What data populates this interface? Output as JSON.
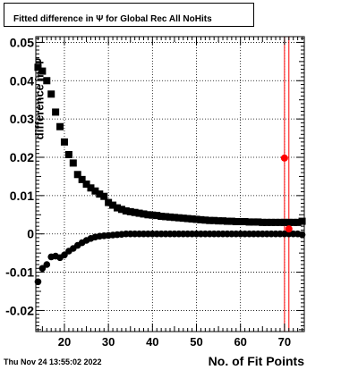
{
  "chart_data": {
    "type": "scatter",
    "title": "Fitted difference in Ψ  for Global Rec All NoHits",
    "ylabel": "difference in Ψ",
    "xlabel": "No. of Fit Points",
    "footer": "Thu Nov 24 13:55:02 2022",
    "xlim": [
      13.5,
      74.5
    ],
    "ylim": [
      -0.0255,
      0.0515
    ],
    "xticks": [
      20,
      30,
      40,
      50,
      60,
      70
    ],
    "xtick_labels": [
      "20",
      "30",
      "40",
      "50",
      "60",
      "70"
    ],
    "yticks": [
      -0.02,
      -0.01,
      0,
      0.01,
      0.02,
      0.03,
      0.04,
      0.05
    ],
    "ytick_labels": [
      "-0.02",
      "-0.01",
      "0",
      "0.01",
      "0.02",
      "0.03",
      "0.04",
      "0.05"
    ],
    "grid": true,
    "colors": {
      "series": "#000000",
      "marker_red": "#ff0000"
    },
    "series": [
      {
        "marker": "square",
        "x": [
          14,
          15,
          16,
          17,
          18,
          19,
          20,
          21,
          22,
          23,
          24,
          25,
          26,
          27,
          28,
          29,
          30,
          31,
          32,
          33,
          34,
          35,
          36,
          37,
          38,
          39,
          40,
          41,
          42,
          43,
          44,
          45,
          46,
          47,
          48,
          49,
          50,
          51,
          52,
          53,
          54,
          55,
          56,
          57,
          58,
          59,
          60,
          61,
          62,
          63,
          64,
          65,
          66,
          67,
          68,
          69,
          70,
          71,
          72,
          73,
          74
        ],
        "values": [
          0.0435,
          0.0425,
          0.04,
          0.0365,
          0.0318,
          0.028,
          0.024,
          0.0207,
          0.0185,
          0.0155,
          0.0142,
          0.013,
          0.012,
          0.0112,
          0.0104,
          0.0098,
          0.0082,
          0.0075,
          0.0068,
          0.0064,
          0.006,
          0.0058,
          0.0056,
          0.0054,
          0.0052,
          0.005,
          0.0049,
          0.0048,
          0.0046,
          0.0045,
          0.0044,
          0.0043,
          0.0042,
          0.0041,
          0.004,
          0.0039,
          0.0038,
          0.0037,
          0.0036,
          0.0035,
          0.0035,
          0.0034,
          0.0034,
          0.0033,
          0.0033,
          0.0032,
          0.0032,
          0.0032,
          0.0031,
          0.0031,
          0.0031,
          0.003,
          0.003,
          0.003,
          0.003,
          0.003,
          0.003,
          0.003,
          0.003,
          0.003,
          0.0033
        ]
      },
      {
        "marker": "circle",
        "x": [
          14,
          15,
          16,
          17,
          18,
          19,
          20,
          21,
          22,
          23,
          24,
          25,
          26,
          27,
          28,
          29,
          30,
          31,
          32,
          33,
          34,
          35,
          36,
          37,
          38,
          39,
          40,
          41,
          42,
          43,
          44,
          45,
          46,
          47,
          48,
          49,
          50,
          51,
          52,
          53,
          54,
          55,
          56,
          57,
          58,
          59,
          60,
          61,
          62,
          63,
          64,
          65,
          66,
          67,
          68,
          69,
          70,
          71,
          72,
          73,
          74
        ],
        "values": [
          -0.0125,
          -0.009,
          -0.008,
          -0.006,
          -0.0058,
          -0.0062,
          -0.0055,
          -0.0045,
          -0.0038,
          -0.003,
          -0.0023,
          -0.0017,
          -0.0012,
          -0.0008,
          -0.0006,
          -0.0005,
          -0.0004,
          -0.0003,
          -0.0002,
          -0.0001,
          0.0,
          0.0,
          0.0,
          0.0,
          0.0,
          0.0,
          0.0,
          0.0,
          0.0,
          0.0,
          0.0,
          0.0,
          0.0,
          0.0,
          0.0,
          0.0,
          0.0,
          0.0,
          0.0,
          0.0,
          0.0,
          0.0,
          0.0,
          0.0,
          0.0,
          0.0,
          0.0,
          0.0,
          0.0,
          0.0,
          0.0,
          0.0,
          0.0,
          0.0,
          0.0,
          0.0,
          0.0,
          0.0,
          0.0,
          0.0,
          -0.0002
        ]
      }
    ],
    "highlight_points": [
      {
        "x": 70,
        "y": 0.0198
      },
      {
        "x": 71,
        "y": 0.0013
      }
    ],
    "vertical_lines": [
      70,
      71
    ]
  }
}
